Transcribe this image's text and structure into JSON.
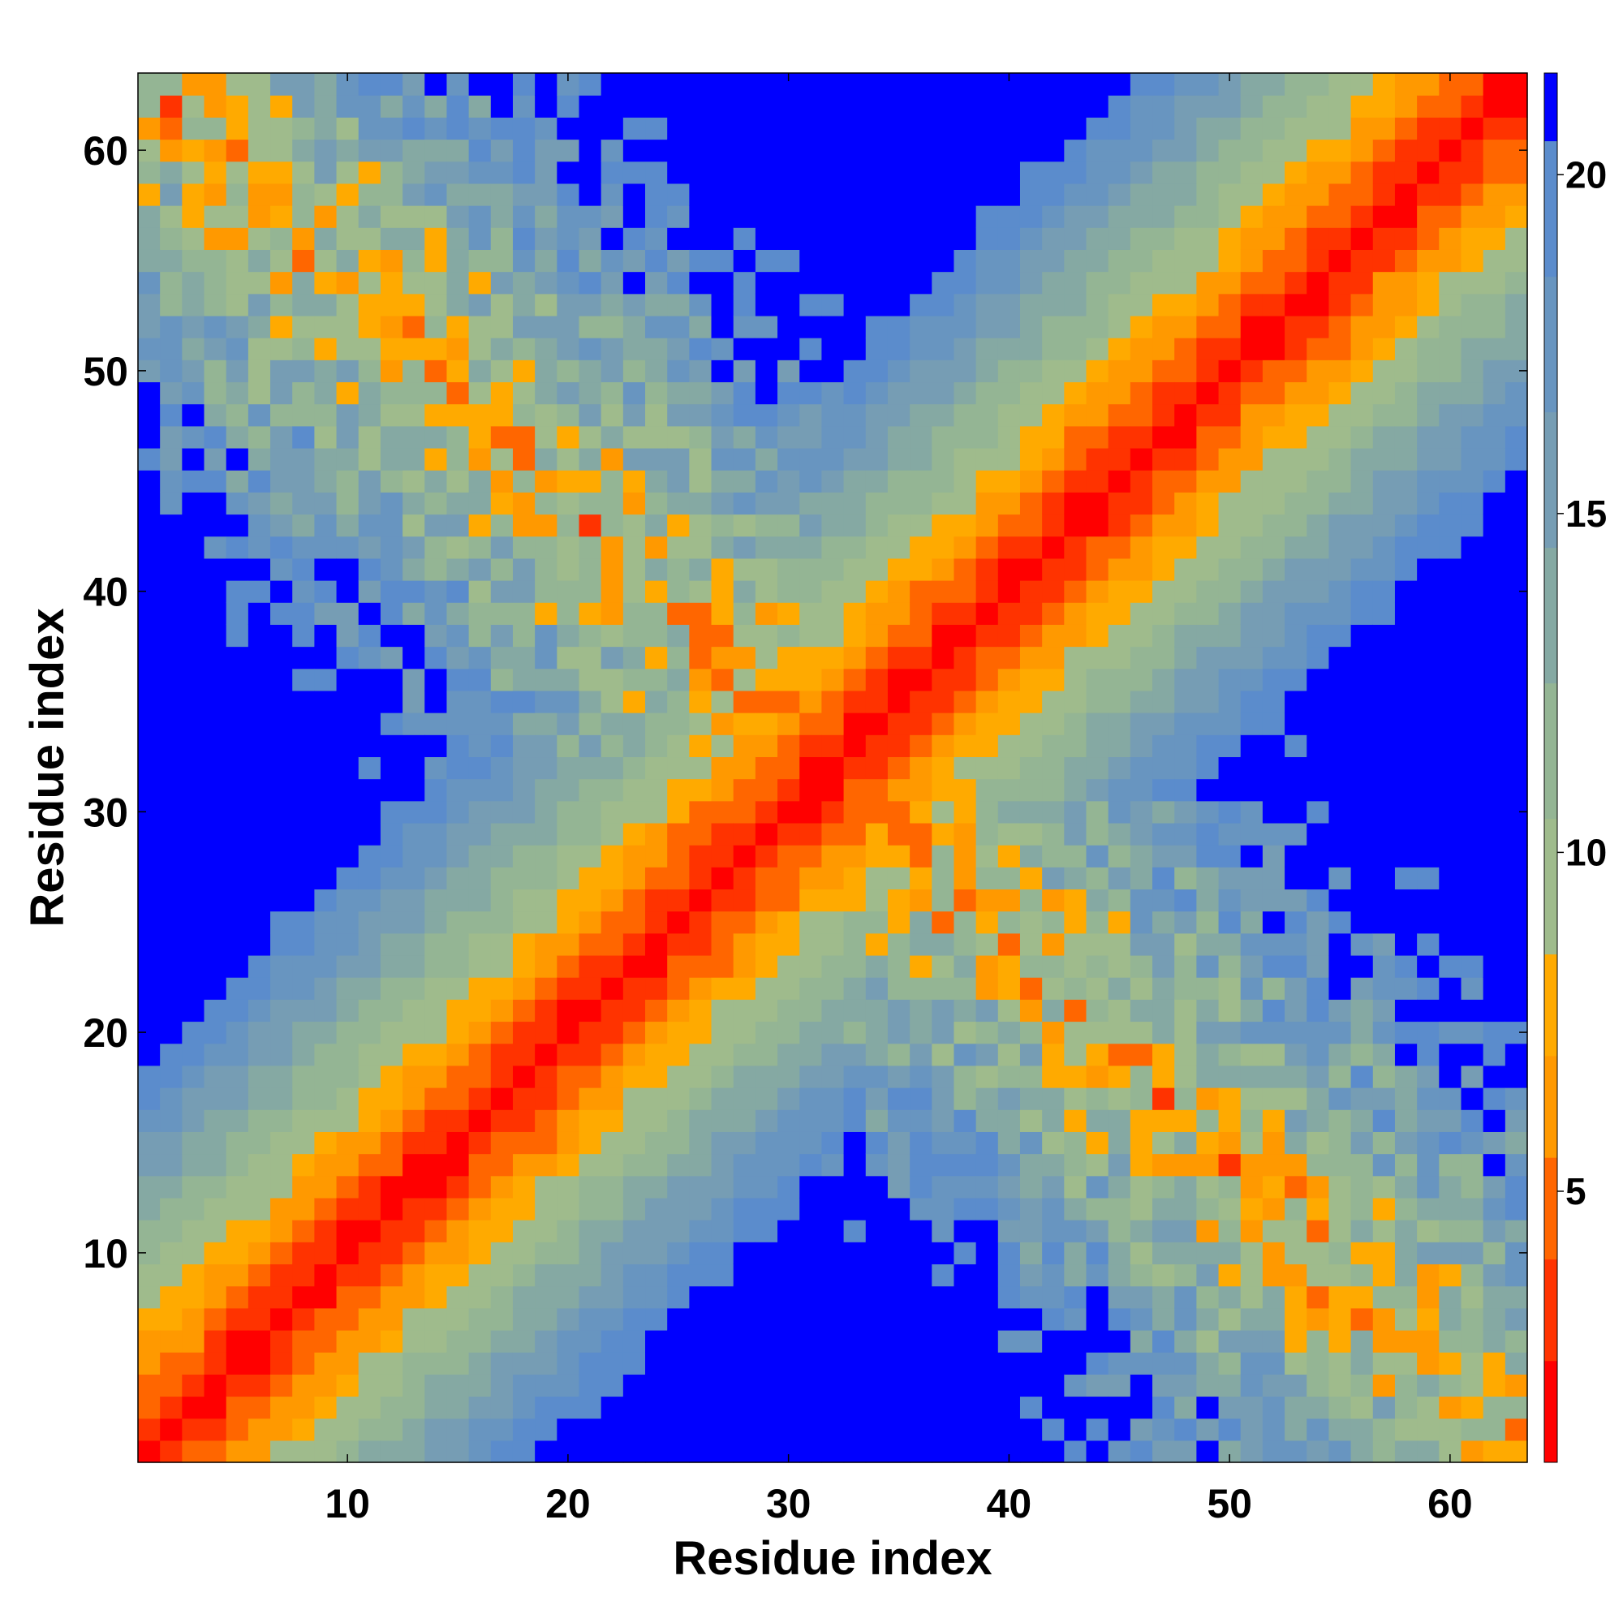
{
  "chart_data": {
    "type": "heatmap",
    "title": "",
    "xlabel": "Residue index",
    "ylabel": "Residue index",
    "n_residues": 63,
    "xlim": [
      1,
      63
    ],
    "ylim": [
      1,
      63
    ],
    "x_ticks": [
      10,
      20,
      30,
      40,
      50,
      60
    ],
    "y_ticks": [
      10,
      20,
      30,
      40,
      50,
      60
    ],
    "colorbar": {
      "ticks": [
        5,
        10,
        15,
        20
      ],
      "range": [
        1,
        21.5
      ],
      "placement": "right"
    },
    "value_rule": "contact distance grows with sequence separation |i-j|; a second band of short contacts runs along the anti-diagonal i+j≈64; long-range distances saturate at the top of the scale",
    "colors": {
      "saturated": "#0000ff",
      "bands": [
        {
          "max": 2.5,
          "color": "#ff0000"
        },
        {
          "max": 4.0,
          "color": "#ff3300"
        },
        {
          "max": 5.5,
          "color": "#ff6600"
        },
        {
          "max": 7.0,
          "color": "#ff9900"
        },
        {
          "max": 8.5,
          "color": "#ffaa00"
        },
        {
          "max": 10.5,
          "color": "#9fbb8c"
        },
        {
          "max": 12.5,
          "color": "#94b594"
        },
        {
          "max": 14.5,
          "color": "#85a9a3"
        },
        {
          "max": 16.5,
          "color": "#769db4"
        },
        {
          "max": 18.5,
          "color": "#6895c0"
        },
        {
          "max": 20.5,
          "color": "#5b8ccc"
        }
      ]
    }
  }
}
